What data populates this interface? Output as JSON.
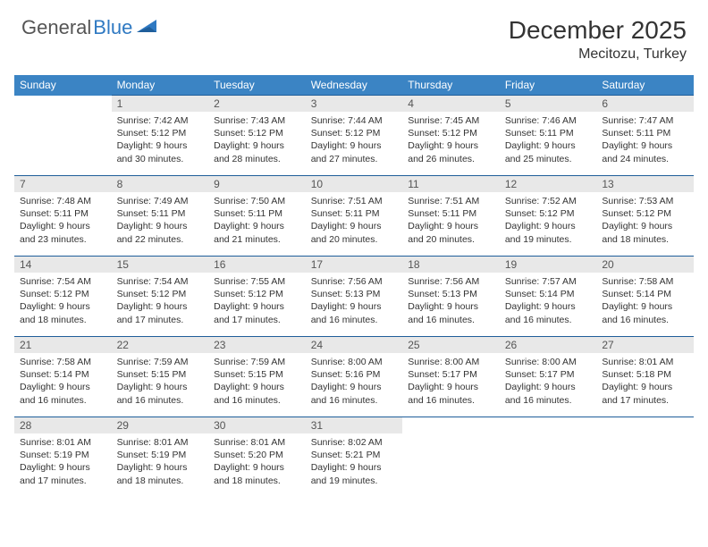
{
  "logo": {
    "general": "General",
    "blue": "Blue"
  },
  "title": "December 2025",
  "location": "Mecitozu, Turkey",
  "colors": {
    "header_bg": "#3b84c4",
    "header_text": "#ffffff",
    "daynum_bg": "#e8e8e8",
    "divider": "#1f5e9a",
    "logo_gray": "#555555",
    "logo_blue": "#2f79c2",
    "text": "#333333",
    "background": "#ffffff"
  },
  "weekdays": [
    "Sunday",
    "Monday",
    "Tuesday",
    "Wednesday",
    "Thursday",
    "Friday",
    "Saturday"
  ],
  "weeks": [
    [
      {
        "empty": true
      },
      {
        "num": "1",
        "sunrise": "Sunrise: 7:42 AM",
        "sunset": "Sunset: 5:12 PM",
        "daylight": "Daylight: 9 hours and 30 minutes."
      },
      {
        "num": "2",
        "sunrise": "Sunrise: 7:43 AM",
        "sunset": "Sunset: 5:12 PM",
        "daylight": "Daylight: 9 hours and 28 minutes."
      },
      {
        "num": "3",
        "sunrise": "Sunrise: 7:44 AM",
        "sunset": "Sunset: 5:12 PM",
        "daylight": "Daylight: 9 hours and 27 minutes."
      },
      {
        "num": "4",
        "sunrise": "Sunrise: 7:45 AM",
        "sunset": "Sunset: 5:12 PM",
        "daylight": "Daylight: 9 hours and 26 minutes."
      },
      {
        "num": "5",
        "sunrise": "Sunrise: 7:46 AM",
        "sunset": "Sunset: 5:11 PM",
        "daylight": "Daylight: 9 hours and 25 minutes."
      },
      {
        "num": "6",
        "sunrise": "Sunrise: 7:47 AM",
        "sunset": "Sunset: 5:11 PM",
        "daylight": "Daylight: 9 hours and 24 minutes."
      }
    ],
    [
      {
        "num": "7",
        "sunrise": "Sunrise: 7:48 AM",
        "sunset": "Sunset: 5:11 PM",
        "daylight": "Daylight: 9 hours and 23 minutes."
      },
      {
        "num": "8",
        "sunrise": "Sunrise: 7:49 AM",
        "sunset": "Sunset: 5:11 PM",
        "daylight": "Daylight: 9 hours and 22 minutes."
      },
      {
        "num": "9",
        "sunrise": "Sunrise: 7:50 AM",
        "sunset": "Sunset: 5:11 PM",
        "daylight": "Daylight: 9 hours and 21 minutes."
      },
      {
        "num": "10",
        "sunrise": "Sunrise: 7:51 AM",
        "sunset": "Sunset: 5:11 PM",
        "daylight": "Daylight: 9 hours and 20 minutes."
      },
      {
        "num": "11",
        "sunrise": "Sunrise: 7:51 AM",
        "sunset": "Sunset: 5:11 PM",
        "daylight": "Daylight: 9 hours and 20 minutes."
      },
      {
        "num": "12",
        "sunrise": "Sunrise: 7:52 AM",
        "sunset": "Sunset: 5:12 PM",
        "daylight": "Daylight: 9 hours and 19 minutes."
      },
      {
        "num": "13",
        "sunrise": "Sunrise: 7:53 AM",
        "sunset": "Sunset: 5:12 PM",
        "daylight": "Daylight: 9 hours and 18 minutes."
      }
    ],
    [
      {
        "num": "14",
        "sunrise": "Sunrise: 7:54 AM",
        "sunset": "Sunset: 5:12 PM",
        "daylight": "Daylight: 9 hours and 18 minutes."
      },
      {
        "num": "15",
        "sunrise": "Sunrise: 7:54 AM",
        "sunset": "Sunset: 5:12 PM",
        "daylight": "Daylight: 9 hours and 17 minutes."
      },
      {
        "num": "16",
        "sunrise": "Sunrise: 7:55 AM",
        "sunset": "Sunset: 5:12 PM",
        "daylight": "Daylight: 9 hours and 17 minutes."
      },
      {
        "num": "17",
        "sunrise": "Sunrise: 7:56 AM",
        "sunset": "Sunset: 5:13 PM",
        "daylight": "Daylight: 9 hours and 16 minutes."
      },
      {
        "num": "18",
        "sunrise": "Sunrise: 7:56 AM",
        "sunset": "Sunset: 5:13 PM",
        "daylight": "Daylight: 9 hours and 16 minutes."
      },
      {
        "num": "19",
        "sunrise": "Sunrise: 7:57 AM",
        "sunset": "Sunset: 5:14 PM",
        "daylight": "Daylight: 9 hours and 16 minutes."
      },
      {
        "num": "20",
        "sunrise": "Sunrise: 7:58 AM",
        "sunset": "Sunset: 5:14 PM",
        "daylight": "Daylight: 9 hours and 16 minutes."
      }
    ],
    [
      {
        "num": "21",
        "sunrise": "Sunrise: 7:58 AM",
        "sunset": "Sunset: 5:14 PM",
        "daylight": "Daylight: 9 hours and 16 minutes."
      },
      {
        "num": "22",
        "sunrise": "Sunrise: 7:59 AM",
        "sunset": "Sunset: 5:15 PM",
        "daylight": "Daylight: 9 hours and 16 minutes."
      },
      {
        "num": "23",
        "sunrise": "Sunrise: 7:59 AM",
        "sunset": "Sunset: 5:15 PM",
        "daylight": "Daylight: 9 hours and 16 minutes."
      },
      {
        "num": "24",
        "sunrise": "Sunrise: 8:00 AM",
        "sunset": "Sunset: 5:16 PM",
        "daylight": "Daylight: 9 hours and 16 minutes."
      },
      {
        "num": "25",
        "sunrise": "Sunrise: 8:00 AM",
        "sunset": "Sunset: 5:17 PM",
        "daylight": "Daylight: 9 hours and 16 minutes."
      },
      {
        "num": "26",
        "sunrise": "Sunrise: 8:00 AM",
        "sunset": "Sunset: 5:17 PM",
        "daylight": "Daylight: 9 hours and 16 minutes."
      },
      {
        "num": "27",
        "sunrise": "Sunrise: 8:01 AM",
        "sunset": "Sunset: 5:18 PM",
        "daylight": "Daylight: 9 hours and 17 minutes."
      }
    ],
    [
      {
        "num": "28",
        "sunrise": "Sunrise: 8:01 AM",
        "sunset": "Sunset: 5:19 PM",
        "daylight": "Daylight: 9 hours and 17 minutes."
      },
      {
        "num": "29",
        "sunrise": "Sunrise: 8:01 AM",
        "sunset": "Sunset: 5:19 PM",
        "daylight": "Daylight: 9 hours and 18 minutes."
      },
      {
        "num": "30",
        "sunrise": "Sunrise: 8:01 AM",
        "sunset": "Sunset: 5:20 PM",
        "daylight": "Daylight: 9 hours and 18 minutes."
      },
      {
        "num": "31",
        "sunrise": "Sunrise: 8:02 AM",
        "sunset": "Sunset: 5:21 PM",
        "daylight": "Daylight: 9 hours and 19 minutes."
      },
      {
        "empty": true
      },
      {
        "empty": true
      },
      {
        "empty": true
      }
    ]
  ]
}
